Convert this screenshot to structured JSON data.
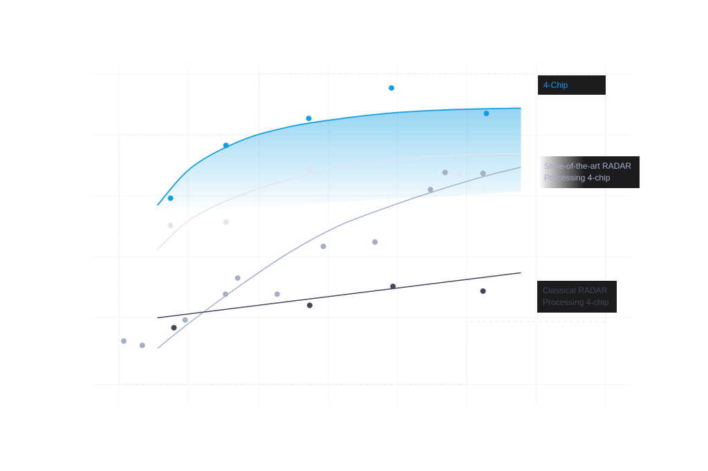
{
  "chart_data": {
    "type": "scatter",
    "title": "",
    "xlabel": "",
    "ylabel": "",
    "xlim": [
      0,
      100
    ],
    "ylim": [
      0,
      100
    ],
    "grid": true,
    "legend": "inline-right",
    "series": [
      {
        "name": "4-Chip",
        "color": "#139fe3",
        "label_lines": [
          "4-Chip"
        ],
        "label_bg": "#1c1c1e",
        "label_color": "#139fe3",
        "points": [
          [
            10.6,
            60.0
          ],
          [
            22.0,
            77.0
          ],
          [
            39.0,
            85.7
          ],
          [
            56.0,
            95.5
          ],
          [
            75.5,
            87.3
          ]
        ],
        "curve": [
          [
            7.9,
            57.7
          ],
          [
            15,
            70
          ],
          [
            25,
            78.5
          ],
          [
            35,
            83
          ],
          [
            45,
            85.5
          ],
          [
            55,
            87.3
          ],
          [
            65,
            88.3
          ],
          [
            75,
            88.8
          ],
          [
            82.6,
            89.0
          ]
        ]
      },
      {
        "name": "",
        "color": "#e2e4ed",
        "label_lines": [
          ""
        ],
        "points": [
          [
            10.6,
            51.2
          ],
          [
            22.0,
            52.3
          ],
          [
            39.0,
            69.0
          ],
          [
            70.0,
            67.6
          ]
        ],
        "curve": [
          [
            7.9,
            43.5
          ],
          [
            15,
            53.5
          ],
          [
            25,
            61
          ],
          [
            35,
            66
          ],
          [
            45,
            69.5
          ],
          [
            55,
            72
          ],
          [
            65,
            73.5
          ],
          [
            75,
            74.3
          ],
          [
            82.6,
            74.5
          ]
        ]
      },
      {
        "name": "State-of-the-art RADAR Processing 4-chip",
        "color": "#a4afc8",
        "label_lines": [
          "State-of-the-art RADAR",
          "Processing 4-chip"
        ],
        "label_bg": "#1c1c1e",
        "label_color": "#a4afc8",
        "points": [
          [
            1.0,
            14.0
          ],
          [
            4.8,
            12.6
          ],
          [
            13.6,
            20.8
          ],
          [
            21.9,
            29.1
          ],
          [
            24.4,
            34.3
          ],
          [
            32.5,
            29.1
          ],
          [
            42.0,
            44.5
          ],
          [
            52.6,
            45.9
          ],
          [
            64.0,
            62.8
          ],
          [
            67.0,
            68.3
          ],
          [
            74.8,
            68.0
          ]
        ],
        "curve": [
          [
            7.9,
            11.6
          ],
          [
            15,
            20.5
          ],
          [
            25,
            32
          ],
          [
            35,
            42.5
          ],
          [
            45,
            51
          ],
          [
            55,
            57
          ],
          [
            65,
            62.3
          ],
          [
            75,
            67
          ],
          [
            82.6,
            70.0
          ]
        ]
      },
      {
        "name": "Classical RADAR Processing 4-chip",
        "color": "#414758",
        "label_lines": [
          "Classical RADAR",
          "Processing 4-chip"
        ],
        "label_bg": "#1c1c1e",
        "label_color": "#414758",
        "points": [
          [
            11.3,
            18.3
          ],
          [
            39.2,
            25.5
          ],
          [
            56.3,
            31.6
          ],
          [
            74.8,
            30.1
          ]
        ],
        "curve": [
          [
            7.9,
            21.5
          ],
          [
            82.6,
            36.0
          ]
        ]
      }
    ]
  }
}
